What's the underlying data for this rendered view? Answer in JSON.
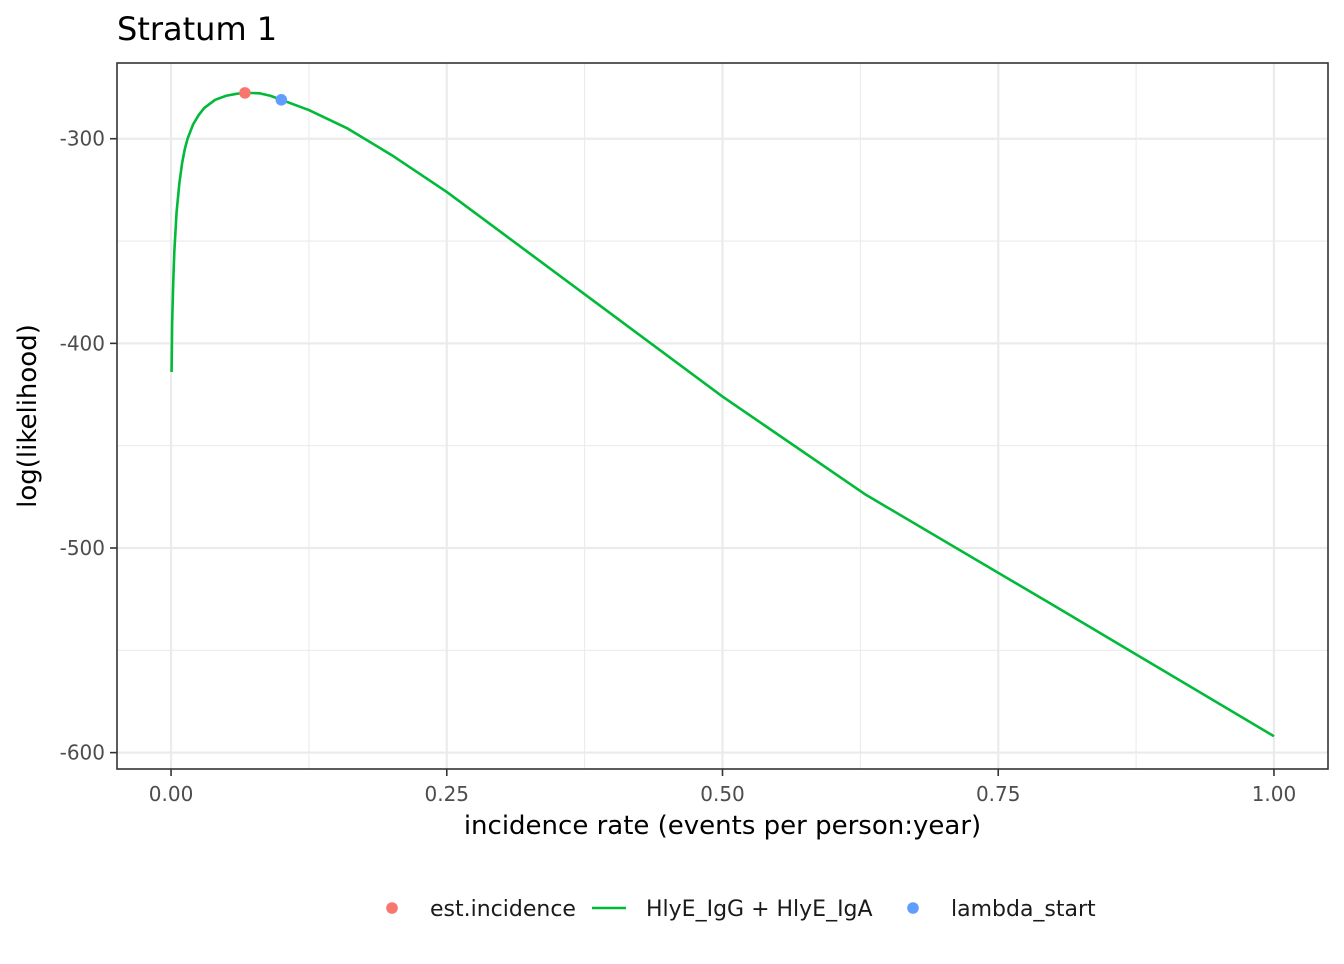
{
  "chart_data": {
    "type": "line",
    "title": "Stratum 1",
    "xlabel": "incidence rate (events per person:year)",
    "ylabel": "log(likelihood)",
    "xlim": [
      -0.049,
      1.049
    ],
    "ylim": [
      -608,
      -263
    ],
    "grid": true,
    "x_ticks": [
      0.0,
      0.25,
      0.5,
      0.75,
      1.0
    ],
    "x_tick_labels": [
      "0.00",
      "0.25",
      "0.50",
      "0.75",
      "1.00"
    ],
    "y_ticks": [
      -300,
      -400,
      -500,
      -600
    ],
    "y_tick_labels": [
      "-300",
      "-400",
      "-500",
      "-600"
    ],
    "legend_position": "bottom",
    "series": [
      {
        "name": "HlyE_IgG + HlyE_IgA",
        "type": "line",
        "color": "#00BA38",
        "x": [
          0.0005,
          0.001,
          0.002,
          0.003,
          0.005,
          0.0075,
          0.01,
          0.0125,
          0.015,
          0.02,
          0.025,
          0.03,
          0.04,
          0.05,
          0.06,
          0.07,
          0.08,
          0.09,
          0.1,
          0.125,
          0.16,
          0.2,
          0.25,
          0.3,
          0.4,
          0.5,
          0.63,
          0.8,
          1.0
        ],
        "y": [
          -414,
          -390,
          -370,
          -355,
          -336,
          -322,
          -312,
          -305,
          -300,
          -293,
          -288.5,
          -285,
          -281,
          -279,
          -278,
          -277.6,
          -277.8,
          -279,
          -281,
          -286,
          -295,
          -308,
          -326,
          -346,
          -386,
          -426,
          -474,
          -528,
          -592
        ]
      },
      {
        "name": "est.incidence",
        "type": "point",
        "color": "#F8766D",
        "x": [
          0.067
        ],
        "y": [
          -277.6
        ]
      },
      {
        "name": "lambda_start",
        "type": "point",
        "color": "#619CFF",
        "x": [
          0.1
        ],
        "y": [
          -281
        ]
      }
    ]
  },
  "legend": {
    "items": [
      {
        "label": "est.incidence",
        "symbol": "point",
        "color": "#F8766D"
      },
      {
        "label": "HlyE_IgG + HlyE_IgA",
        "symbol": "line",
        "color": "#00BA38"
      },
      {
        "label": "lambda_start",
        "symbol": "point",
        "color": "#619CFF"
      }
    ]
  }
}
